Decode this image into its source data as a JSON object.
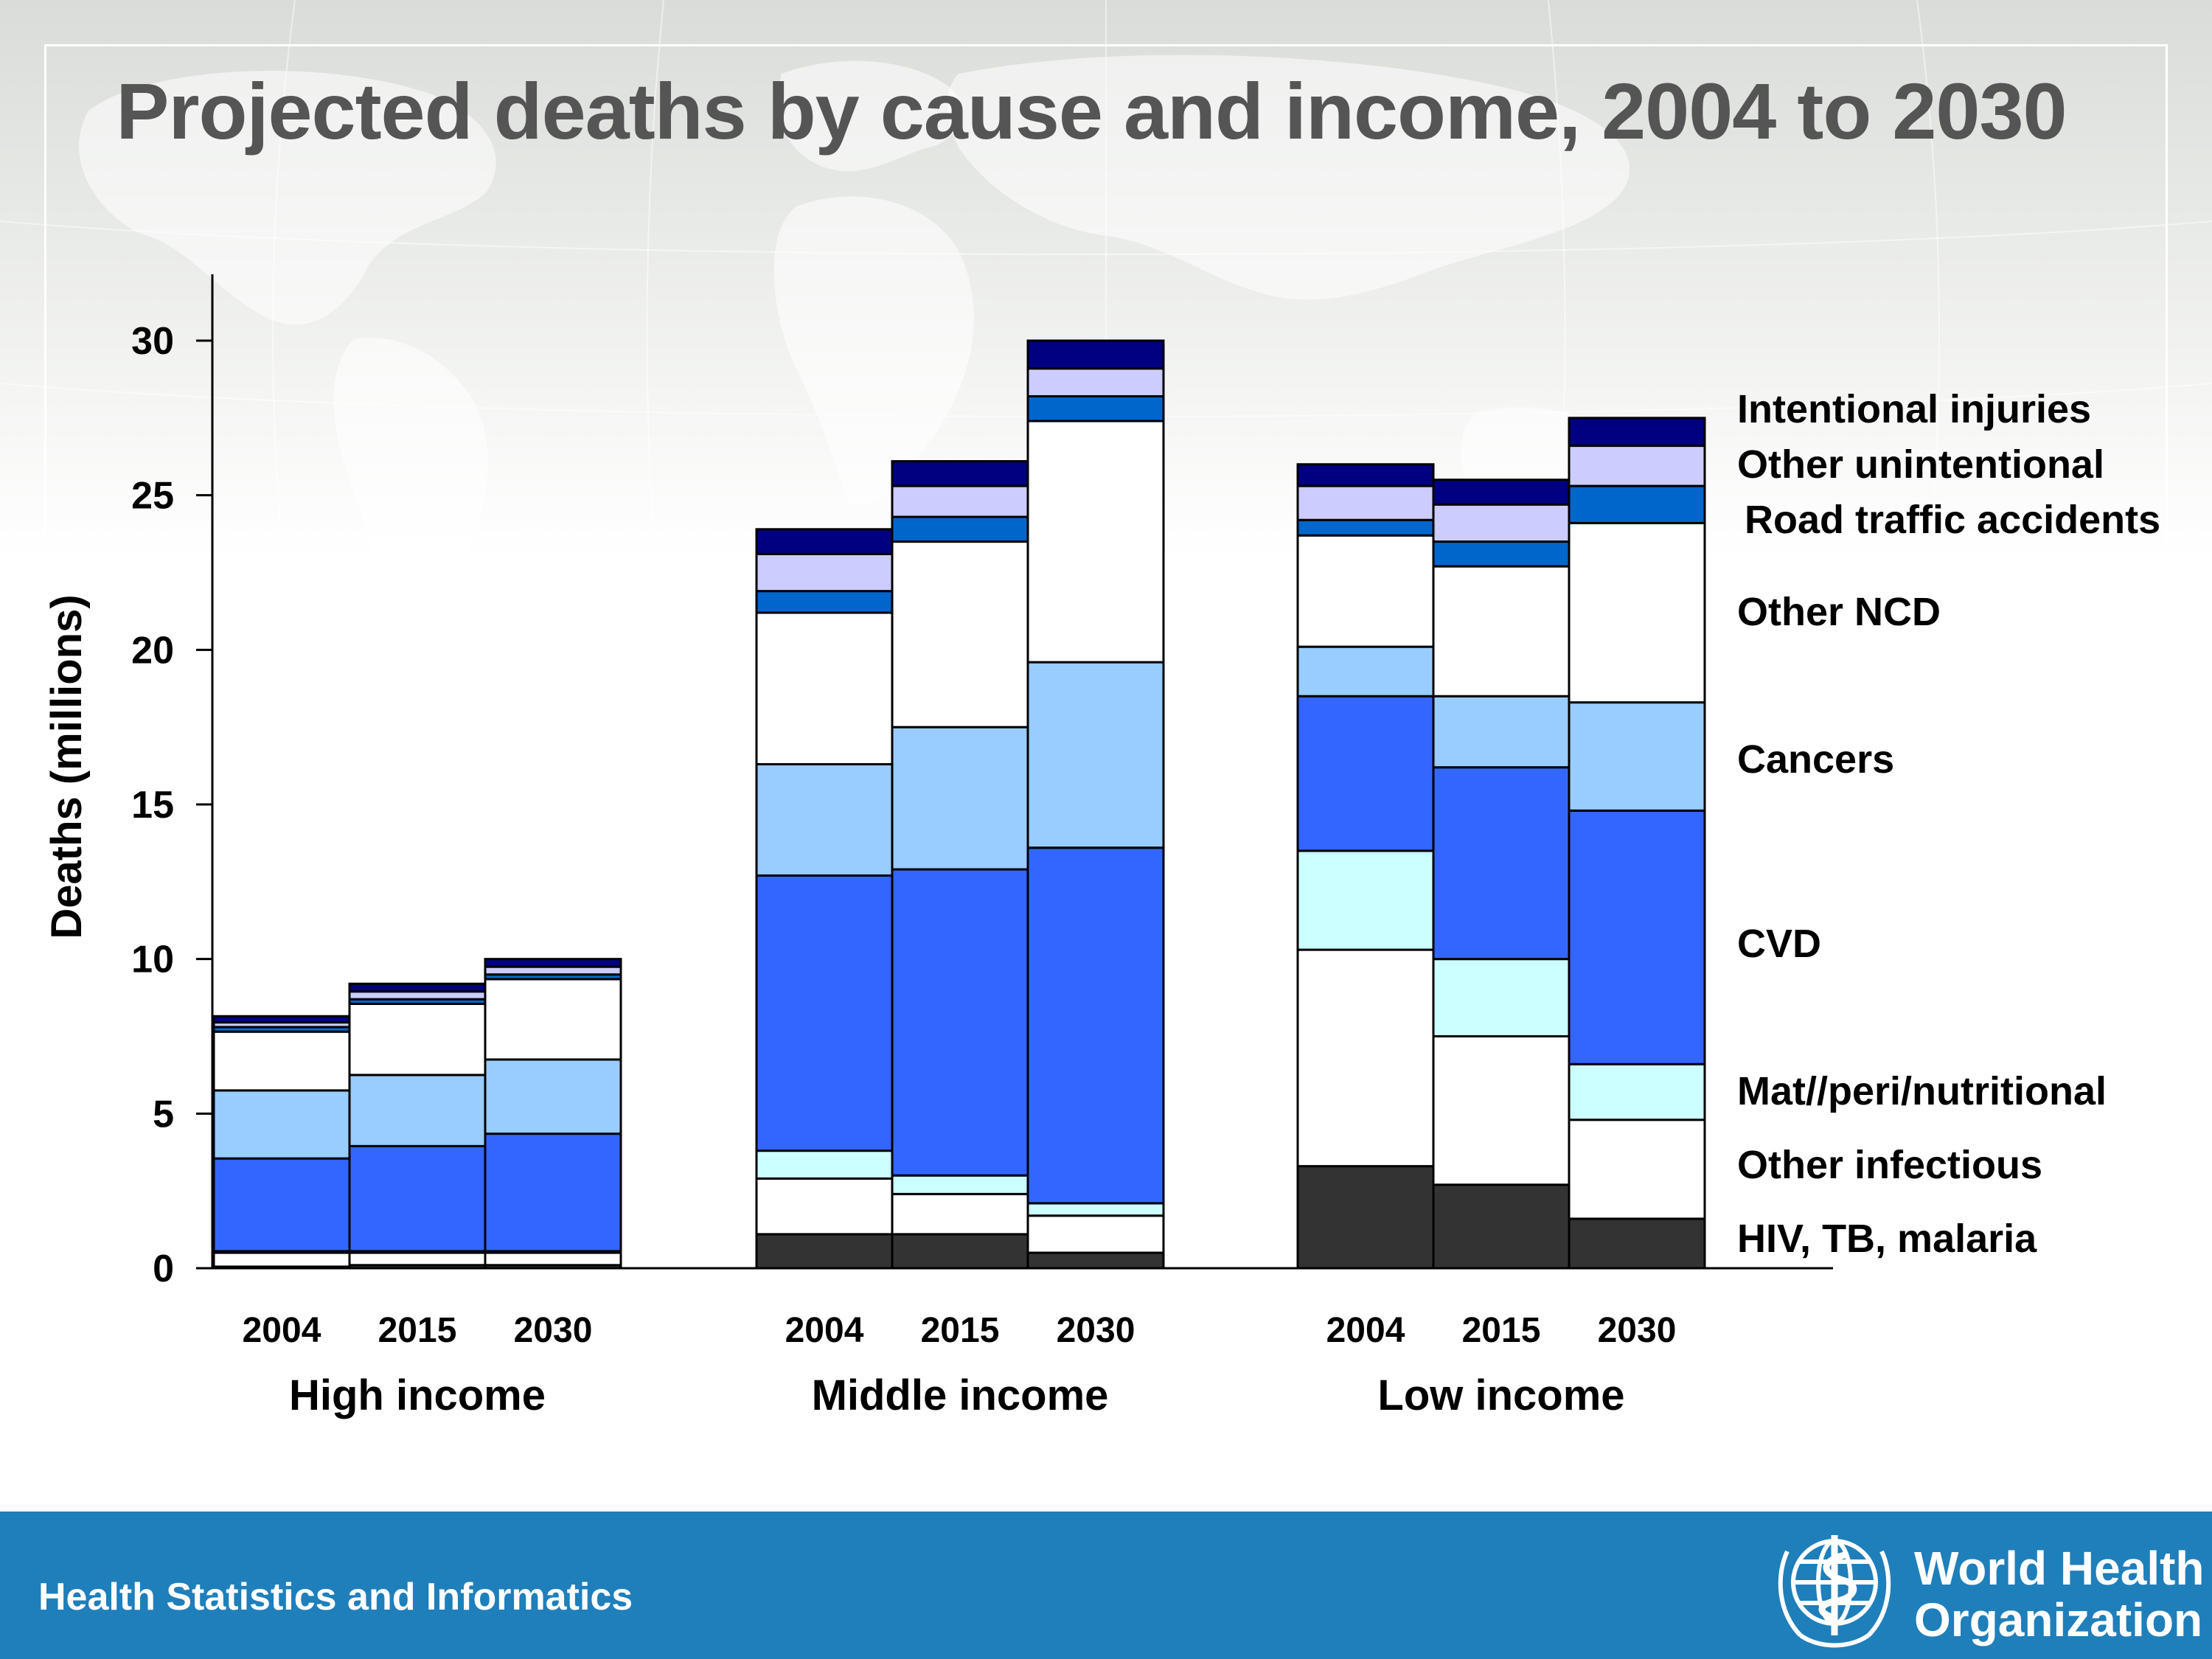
{
  "slide": {
    "title": "Projected deaths by cause and income, 2004 to 2030",
    "footer": "Health Statistics and Informatics",
    "organization_line1": "World Health",
    "organization_line2": "Organization",
    "colors": {
      "footer_bar": "#1e7fbb",
      "title": "#555555"
    }
  },
  "chart_data": {
    "type": "bar",
    "stacked": true,
    "title": "Projected deaths by cause and income, 2004 to 2030",
    "ylabel": "Deaths (millions)",
    "xlabel": "",
    "ylim": [
      0,
      32
    ],
    "yticks": [
      0,
      5,
      10,
      15,
      20,
      25,
      30
    ],
    "grid": false,
    "legend": "right, labels aligned with stack segments",
    "groups": [
      {
        "name": "High income",
        "years": [
          "2004",
          "2015",
          "2030"
        ]
      },
      {
        "name": "Middle income",
        "years": [
          "2004",
          "2015",
          "2030"
        ]
      },
      {
        "name": "Low income",
        "years": [
          "2004",
          "2015",
          "2030"
        ]
      }
    ],
    "categories": [
      "2004",
      "2015",
      "2030",
      "2004",
      "2015",
      "2030",
      "2004",
      "2015",
      "2030"
    ],
    "series": [
      {
        "name": "HIV, TB, malaria",
        "color": "#333333",
        "values": [
          0.05,
          0.1,
          0.1,
          1.1,
          1.1,
          0.5,
          3.3,
          2.7,
          1.6
        ]
      },
      {
        "name": "Other infectious",
        "color": "#ffffff",
        "values": [
          0.45,
          0.4,
          0.4,
          1.8,
          1.3,
          1.2,
          7.0,
          4.8,
          3.2
        ]
      },
      {
        "name": "Mat//peri/nutritional",
        "color": "#ccffff",
        "values": [
          0.05,
          0.05,
          0.05,
          0.9,
          0.6,
          0.4,
          3.2,
          2.5,
          1.8
        ]
      },
      {
        "name": "CVD",
        "color": "#3366ff",
        "values": [
          3.0,
          3.4,
          3.8,
          8.9,
          9.9,
          11.5,
          5.0,
          6.2,
          8.2
        ]
      },
      {
        "name": "Cancers",
        "color": "#99ccff",
        "values": [
          2.2,
          2.3,
          2.4,
          3.6,
          4.6,
          6.0,
          1.6,
          2.3,
          3.5
        ]
      },
      {
        "name": "Other NCD",
        "color": "#ffffff",
        "values": [
          1.9,
          2.3,
          2.6,
          4.9,
          6.0,
          7.8,
          3.6,
          4.2,
          5.8
        ]
      },
      {
        "name": "Road traffic accidents",
        "color": "#0066cc",
        "values": [
          0.15,
          0.15,
          0.15,
          0.7,
          0.8,
          0.8,
          0.5,
          0.8,
          1.2
        ]
      },
      {
        "name": "Other unintentional",
        "color": "#ccccff",
        "values": [
          0.15,
          0.25,
          0.25,
          1.2,
          1.0,
          0.9,
          1.1,
          1.2,
          1.3
        ]
      },
      {
        "name": "Intentional injuries",
        "color": "#000080",
        "values": [
          0.2,
          0.25,
          0.25,
          0.8,
          0.8,
          0.9,
          0.7,
          0.8,
          0.9
        ]
      }
    ]
  }
}
